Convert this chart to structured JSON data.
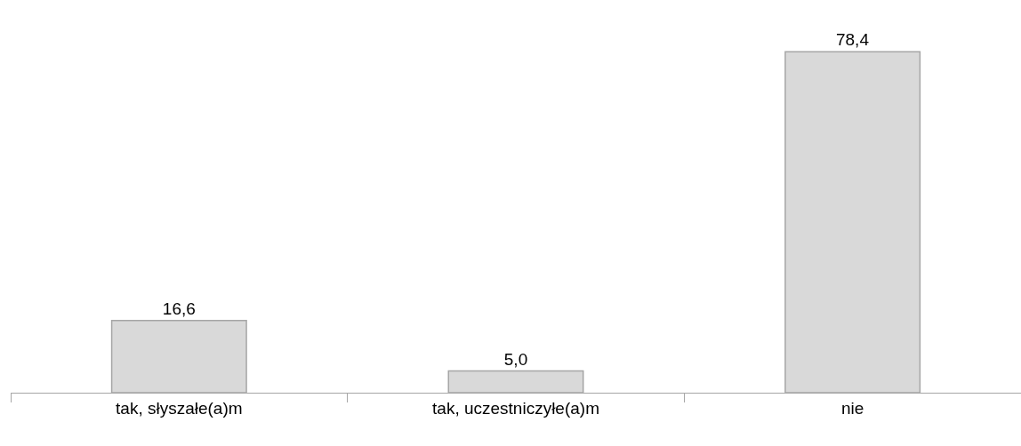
{
  "chart_data": {
    "type": "bar",
    "categories": [
      "tak, słyszałe(a)m",
      "tak, uczestniczyłe(a)m",
      "nie"
    ],
    "values": [
      16.6,
      5.0,
      78.4
    ],
    "value_labels": [
      "16,6",
      "5,0",
      "78,4"
    ],
    "color": "#d9d9d9"
  }
}
